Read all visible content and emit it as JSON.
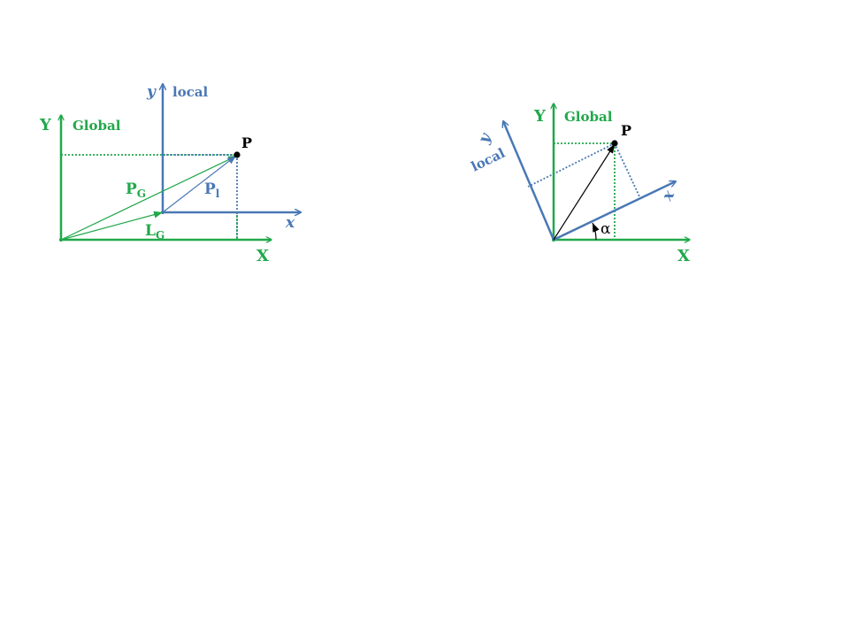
{
  "colors": {
    "global": "#21a84a",
    "local": "#4a78b5",
    "point": "#000000"
  },
  "left_diagram": {
    "global_axis_x": "X",
    "global_axis_y": "Y",
    "global_label": "Global",
    "local_axis_x": "x",
    "local_axis_y": "y",
    "local_label": "local",
    "point_label": "P",
    "vec_pg": "P",
    "vec_pg_sub": "G",
    "vec_pl": "P",
    "vec_pl_sub": "l",
    "vec_lg": "L",
    "vec_lg_sub": "G"
  },
  "right_diagram": {
    "global_axis_x": "X",
    "global_axis_y": "Y",
    "global_label": "Global",
    "local_axis_x": "x",
    "local_axis_y": "y",
    "local_label": "local",
    "point_label": "P",
    "angle_label": "α"
  }
}
